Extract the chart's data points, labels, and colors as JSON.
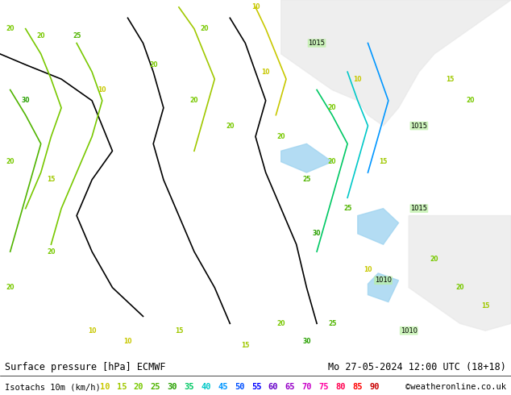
{
  "title_left": "Surface pressure [hPa] ECMWF",
  "title_right": "Mo 27-05-2024 12:00 UTC (18+18)",
  "legend_label": "Isotachs 10m (km/h)",
  "copyright": "©weatheronline.co.uk",
  "background_color": "#b3f0a0",
  "legend_values": [
    "10",
    "15",
    "20",
    "25",
    "30",
    "35",
    "40",
    "45",
    "50",
    "55",
    "60",
    "65",
    "70",
    "75",
    "80",
    "85",
    "90"
  ],
  "legend_colors": [
    "#c8c800",
    "#a0c800",
    "#78c800",
    "#50b400",
    "#28a000",
    "#00c864",
    "#00c8c8",
    "#0096ff",
    "#0050ff",
    "#0000ff",
    "#6400c8",
    "#9600c8",
    "#c800c8",
    "#ff00a0",
    "#ff0050",
    "#ff0000",
    "#c80000"
  ],
  "fig_width": 6.34,
  "fig_height": 4.9,
  "dpi": 100,
  "map_bg": "#b8f0a0",
  "bottom_bar_color": "#000000",
  "title_fontsize": 8.5,
  "legend_fontsize": 7.5
}
